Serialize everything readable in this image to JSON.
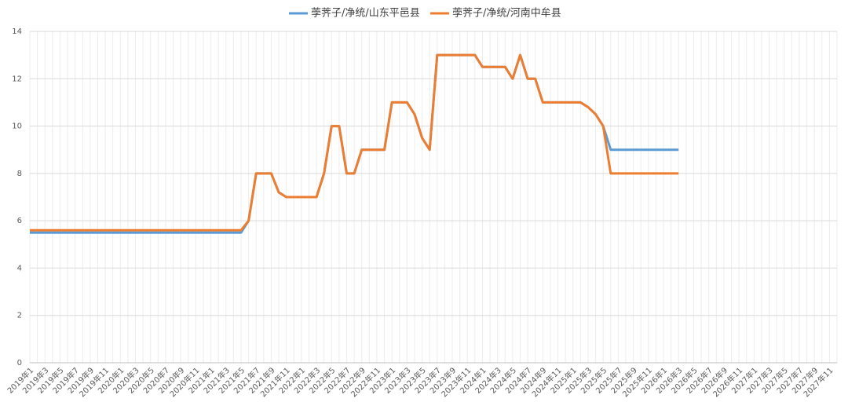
{
  "chart_data": {
    "type": "line",
    "categories": [
      "2019年1",
      null,
      "2019年3",
      null,
      "2019年5",
      null,
      "2019年7",
      null,
      "2019年9",
      null,
      "2019年11",
      null,
      "2020年1",
      null,
      "2020年3",
      null,
      "2020年5",
      null,
      "2020年7",
      null,
      "2020年9",
      null,
      "2020年11",
      null,
      "2021年1",
      null,
      "2021年3",
      null,
      "2021年5",
      null,
      "2021年7",
      null,
      "2021年9",
      null,
      "2021年11",
      null,
      "2022年1",
      null,
      "2022年3",
      null,
      "2022年5",
      null,
      "2022年7",
      null,
      "2022年9",
      null,
      "2022年11",
      null,
      "2023年1",
      null,
      "2023年3",
      null,
      "2023年5",
      null,
      "2023年7",
      null,
      "2023年9",
      null,
      "2023年11",
      null,
      "2024年1",
      null,
      "2024年3",
      null,
      "2024年5",
      null,
      "2024年7",
      null,
      "2024年9",
      null,
      "2024年11",
      null,
      "2025年1",
      null,
      "2025年3",
      null,
      "2025年5",
      null,
      "2025年7",
      null,
      "2025年9",
      null,
      "2025年11",
      null,
      "2026年1",
      null,
      "2026年3",
      null,
      "2026年5",
      null,
      "2026年7",
      null,
      "2026年9",
      null,
      "2026年11",
      null,
      "2027年1",
      null,
      "2027年3",
      null,
      "2027年5",
      null,
      "2027年7",
      null,
      "2027年9",
      null,
      "2027年11",
      null
    ],
    "series": [
      {
        "name": "荸荠子/净统/山东平邑县",
        "color": "#5b9bd5",
        "values": [
          5.5,
          5.5,
          5.5,
          5.5,
          5.5,
          5.5,
          5.5,
          5.5,
          5.5,
          5.5,
          5.5,
          5.5,
          5.5,
          5.5,
          5.5,
          5.5,
          5.5,
          5.5,
          5.5,
          5.5,
          5.5,
          5.5,
          5.5,
          5.5,
          5.5,
          5.5,
          5.5,
          5.5,
          5.5,
          6,
          8,
          8,
          8,
          7.2,
          7,
          7,
          7,
          7,
          7,
          8,
          10,
          10,
          8,
          8,
          9,
          9,
          9,
          9,
          11,
          11,
          11,
          10.5,
          9.5,
          9,
          13,
          13,
          13,
          13,
          13,
          13,
          12.5,
          12.5,
          12.5,
          12.5,
          12,
          13,
          12,
          12,
          11,
          11,
          11,
          11,
          11,
          11,
          10.8,
          10.5,
          10,
          9,
          9,
          9,
          9,
          9,
          9,
          9,
          9,
          9,
          9,
          null,
          null,
          null,
          null,
          null,
          null,
          null,
          null,
          null,
          null,
          null,
          null,
          null,
          null,
          null,
          null,
          null,
          null,
          null,
          null,
          null
        ]
      },
      {
        "name": "荸荠子/净统/河南中牟县",
        "color": "#ed7d31",
        "values": [
          5.6,
          5.6,
          5.6,
          5.6,
          5.6,
          5.6,
          5.6,
          5.6,
          5.6,
          5.6,
          5.6,
          5.6,
          5.6,
          5.6,
          5.6,
          5.6,
          5.6,
          5.6,
          5.6,
          5.6,
          5.6,
          5.6,
          5.6,
          5.6,
          5.6,
          5.6,
          5.6,
          5.6,
          5.6,
          6,
          8,
          8,
          8,
          7.2,
          7,
          7,
          7,
          7,
          7,
          8,
          10,
          10,
          8,
          8,
          9,
          9,
          9,
          9,
          11,
          11,
          11,
          10.5,
          9.5,
          9,
          13,
          13,
          13,
          13,
          13,
          13,
          12.5,
          12.5,
          12.5,
          12.5,
          12,
          13,
          12,
          12,
          11,
          11,
          11,
          11,
          11,
          11,
          10.8,
          10.5,
          10,
          8,
          8,
          8,
          8,
          8,
          8,
          8,
          8,
          8,
          8,
          null,
          null,
          null,
          null,
          null,
          null,
          null,
          null,
          null,
          null,
          null,
          null,
          null,
          null,
          null,
          null,
          null,
          null,
          null,
          null,
          null
        ]
      }
    ],
    "ylim": [
      0,
      14
    ],
    "yticks": [
      0,
      2,
      4,
      6,
      8,
      10,
      12,
      14
    ],
    "grid": true
  }
}
